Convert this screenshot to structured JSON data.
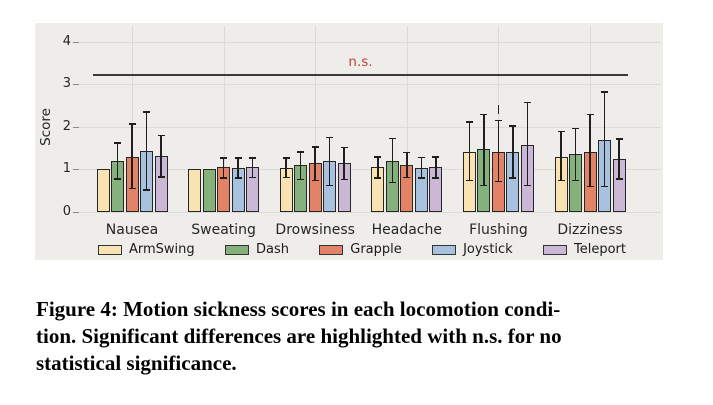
{
  "figure": {
    "caption_lines": [
      "Figure 4: Motion sickness scores in each locomotion condi-",
      "tion. Significant differences are highlighted with n.s. for no",
      "statistical significance."
    ]
  },
  "colors": {
    "figure_bg": "#efedea",
    "grid": "#dcdad6",
    "tick": "#8a8a8a",
    "bar_edge": "#262626",
    "error": "#1f1f1f",
    "ns_line": "#3a3a3a"
  },
  "chart_data": {
    "type": "bar",
    "title": "",
    "xlabel": "",
    "ylabel": "Score",
    "categories": [
      "Nausea",
      "Sweating",
      "Drowsiness",
      "Headache",
      "Flushing",
      "Dizziness"
    ],
    "yticks": [
      0,
      1,
      2,
      3,
      4
    ],
    "ylim": [
      0,
      4.35
    ],
    "grid": true,
    "legend_position": "bottom",
    "series": [
      {
        "name": "ArmSwing",
        "color": "#fae3b2",
        "values": [
          1.0,
          1.0,
          1.03,
          1.05,
          1.42,
          1.28
        ],
        "err_low": [
          null,
          null,
          0.81,
          0.8,
          0.75,
          0.75
        ],
        "err_high": [
          null,
          null,
          1.27,
          1.3,
          2.12,
          1.9
        ]
      },
      {
        "name": "Dash",
        "color": "#85b17c",
        "values": [
          1.2,
          1.0,
          1.1,
          1.2,
          1.48,
          1.35
        ],
        "err_low": [
          0.78,
          null,
          0.77,
          0.7,
          0.63,
          0.75
        ],
        "err_high": [
          1.63,
          null,
          1.42,
          1.73,
          2.3,
          1.97
        ]
      },
      {
        "name": "Grapple",
        "color": "#e28266",
        "values": [
          1.3,
          1.05,
          1.15,
          1.1,
          1.42,
          1.4
        ],
        "err_low": [
          0.56,
          0.8,
          0.75,
          0.82,
          0.72,
          0.6
        ],
        "err_high": [
          2.07,
          1.27,
          1.53,
          1.4,
          2.15,
          2.3
        ]
      },
      {
        "name": "Joystick",
        "color": "#a7c1de",
        "values": [
          1.43,
          1.03,
          1.2,
          1.03,
          1.42,
          1.7
        ],
        "err_low": [
          0.52,
          0.8,
          0.63,
          0.8,
          0.8,
          0.6
        ],
        "err_high": [
          2.35,
          1.27,
          1.75,
          1.28,
          2.03,
          2.82
        ]
      },
      {
        "name": "Teleport",
        "color": "#cbb8d6",
        "values": [
          1.32,
          1.05,
          1.15,
          1.05,
          1.58,
          1.25
        ],
        "err_low": [
          0.83,
          0.82,
          0.77,
          0.8,
          0.63,
          0.78
        ],
        "err_high": [
          1.8,
          1.27,
          1.52,
          1.3,
          2.58,
          1.72
        ]
      }
    ],
    "annotation": {
      "text": "n.s.",
      "color": "#c0403c",
      "line_y": 3.25
    },
    "stray_mark": {
      "category_index": 4,
      "series_index": 2,
      "y_from": 2.3,
      "y_to": 2.52
    }
  }
}
